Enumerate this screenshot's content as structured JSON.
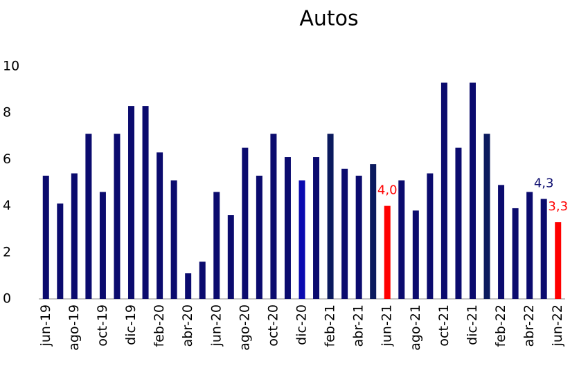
{
  "chart_data": {
    "type": "bar",
    "title": "Autos",
    "categories": [
      "jun-19",
      null,
      "ago-19",
      null,
      "oct-19",
      null,
      "dic-19",
      null,
      "feb-20",
      null,
      "abr-20",
      null,
      "jun-20",
      null,
      "ago-20",
      null,
      "oct-20",
      null,
      "dic-20",
      null,
      "feb-21",
      null,
      "abr-21",
      null,
      "jun-21",
      null,
      "ago-21",
      null,
      "oct-21",
      null,
      "dic-21",
      null,
      "feb-22",
      null,
      "abr-22",
      null,
      "jun-22"
    ],
    "values": [
      5.3,
      4.1,
      5.4,
      7.1,
      4.6,
      7.1,
      8.3,
      8.3,
      6.3,
      5.1,
      1.1,
      1.6,
      4.6,
      3.6,
      6.5,
      5.3,
      7.1,
      6.1,
      5.1,
      6.1,
      7.1,
      5.6,
      5.3,
      5.8,
      4.0,
      5.1,
      3.8,
      5.4,
      9.3,
      6.5,
      9.3,
      7.1,
      4.9,
      3.9,
      4.6,
      4.3,
      3.3
    ],
    "value_labels": [
      null,
      null,
      null,
      null,
      null,
      null,
      null,
      null,
      null,
      null,
      null,
      null,
      null,
      null,
      null,
      null,
      null,
      null,
      null,
      null,
      null,
      null,
      null,
      null,
      "4,0",
      null,
      null,
      null,
      null,
      null,
      null,
      null,
      null,
      null,
      null,
      "4,3",
      "3,3"
    ],
    "colors": [
      "#0b0b6e",
      "#0b0b6e",
      "#0b0b6e",
      "#0b0b6e",
      "#0b0b6e",
      "#0b0b6e",
      "#0b0b6e",
      "#0b0b6e",
      "#0b0b6e",
      "#0b0b6e",
      "#0b0b6e",
      "#0b0b6e",
      "#0b0b6e",
      "#0b0b6e",
      "#0b0b6e",
      "#0b0b6e",
      "#0b0b6e",
      "#0b0b6e",
      "#0a0ab0",
      "#0b0b6e",
      "#0b1a5e",
      "#0b0b6e",
      "#0b0b6e",
      "#0b1a5e",
      "#ff0000",
      "#0b0b6e",
      "#0b0b6e",
      "#0b0b6e",
      "#0b0b6e",
      "#0b0b6e",
      "#0b0b6e",
      "#0b1a5e",
      "#0b0b6e",
      "#0b0b6e",
      "#0b0b6e",
      "#0b0b6e",
      "#ff0000"
    ],
    "ylim": [
      0,
      10
    ],
    "yticks": [
      0,
      2,
      4,
      6,
      8,
      10
    ]
  }
}
